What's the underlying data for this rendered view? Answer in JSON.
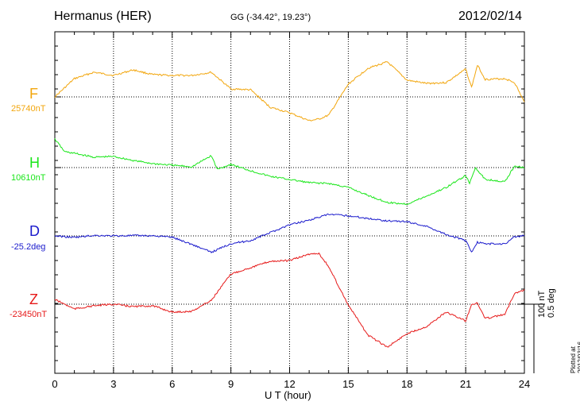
{
  "header": {
    "station": "Hermanus (HER)",
    "coords": "GG (-34.42°,  19.23°)",
    "date": "2012/02/14"
  },
  "components": [
    {
      "letter": "F",
      "value": "25740nT",
      "color": "#f2a60d"
    },
    {
      "letter": "H",
      "value": "10610nT",
      "color": "#19e619"
    },
    {
      "letter": "D",
      "value": "-25.2deg",
      "color": "#1a1acc"
    },
    {
      "letter": "Z",
      "value": "-23450nT",
      "color": "#e61919"
    }
  ],
  "scale": {
    "nt": "100 nT",
    "deg": "0.5 deg"
  },
  "footer": {
    "plotted": "Plotted at 2012/03/16 01:01  UT"
  },
  "chart_data": {
    "type": "line",
    "xlabel": "U T (hour)",
    "xlim": [
      0,
      24
    ],
    "xticks": [
      "0",
      "3",
      "6",
      "9",
      "12",
      "15",
      "18",
      "21",
      "24"
    ],
    "grid": true,
    "series": [
      {
        "name": "F",
        "x": [
          0,
          1,
          2,
          3,
          4,
          5,
          6,
          7,
          8,
          9,
          10,
          11,
          12,
          13,
          13.5,
          14,
          15,
          16,
          17,
          18,
          19,
          20,
          21,
          21.3,
          21.6,
          22,
          23,
          23.5,
          24
        ],
        "values": [
          25740,
          25763,
          25771,
          25767,
          25774,
          25768,
          25767,
          25767,
          25771,
          25750,
          25749,
          25727,
          25720,
          25710,
          25712,
          25717,
          25756,
          25776,
          25784,
          25761,
          25757,
          25758,
          25775,
          25752,
          25780,
          25762,
          25763,
          25758,
          25733
        ]
      },
      {
        "name": "H",
        "x": [
          0,
          0.5,
          1,
          2,
          3,
          4,
          5,
          6,
          7,
          8,
          8.3,
          9,
          10,
          11,
          12,
          13,
          14,
          15,
          16,
          17,
          18,
          19,
          20,
          21,
          21.2,
          21.5,
          22,
          22.5,
          23,
          23.5,
          24
        ],
        "values": [
          10646,
          10630,
          10628,
          10623,
          10624,
          10619,
          10615,
          10613,
          10611,
          10625,
          10608,
          10614,
          10606,
          10599,
          10595,
          10591,
          10590,
          10585,
          10575,
          10566,
          10564,
          10574,
          10585,
          10600,
          10590,
          10610,
          10595,
          10594,
          10592,
          10612,
          10610
        ]
      },
      {
        "name": "D",
        "x": [
          0,
          1,
          2,
          3,
          4,
          5,
          6,
          7,
          8,
          9,
          10,
          11,
          12,
          13,
          14,
          15,
          16,
          17,
          18,
          19,
          20,
          21,
          21.3,
          21.6,
          22,
          23,
          23.5,
          24
        ],
        "values": [
          -25.2,
          -25.21,
          -25.197,
          -25.2,
          -25.198,
          -25.199,
          -25.208,
          -25.253,
          -25.303,
          -25.248,
          -25.23,
          -25.18,
          -25.13,
          -25.1,
          -25.065,
          -25.073,
          -25.09,
          -25.105,
          -25.11,
          -25.14,
          -25.19,
          -25.23,
          -25.3,
          -25.24,
          -25.25,
          -25.25,
          -25.205,
          -25.2
        ]
      },
      {
        "name": "Z",
        "x": [
          0,
          1,
          2,
          3,
          4,
          5,
          6,
          7,
          8,
          9,
          10,
          11,
          12,
          13,
          13.5,
          14,
          15,
          16,
          17,
          18,
          19,
          20,
          21,
          21.3,
          21.6,
          22,
          23,
          23.5,
          24
        ],
        "values": [
          -23444,
          -23456,
          -23452,
          -23450,
          -23453,
          -23452,
          -23460,
          -23459,
          -23445,
          -23412,
          -23404,
          -23396,
          -23395,
          -23387,
          -23386,
          -23403,
          -23451,
          -23489,
          -23504,
          -23487,
          -23478,
          -23460,
          -23471,
          -23450,
          -23449,
          -23468,
          -23463,
          -23436,
          -23432
        ]
      }
    ]
  }
}
